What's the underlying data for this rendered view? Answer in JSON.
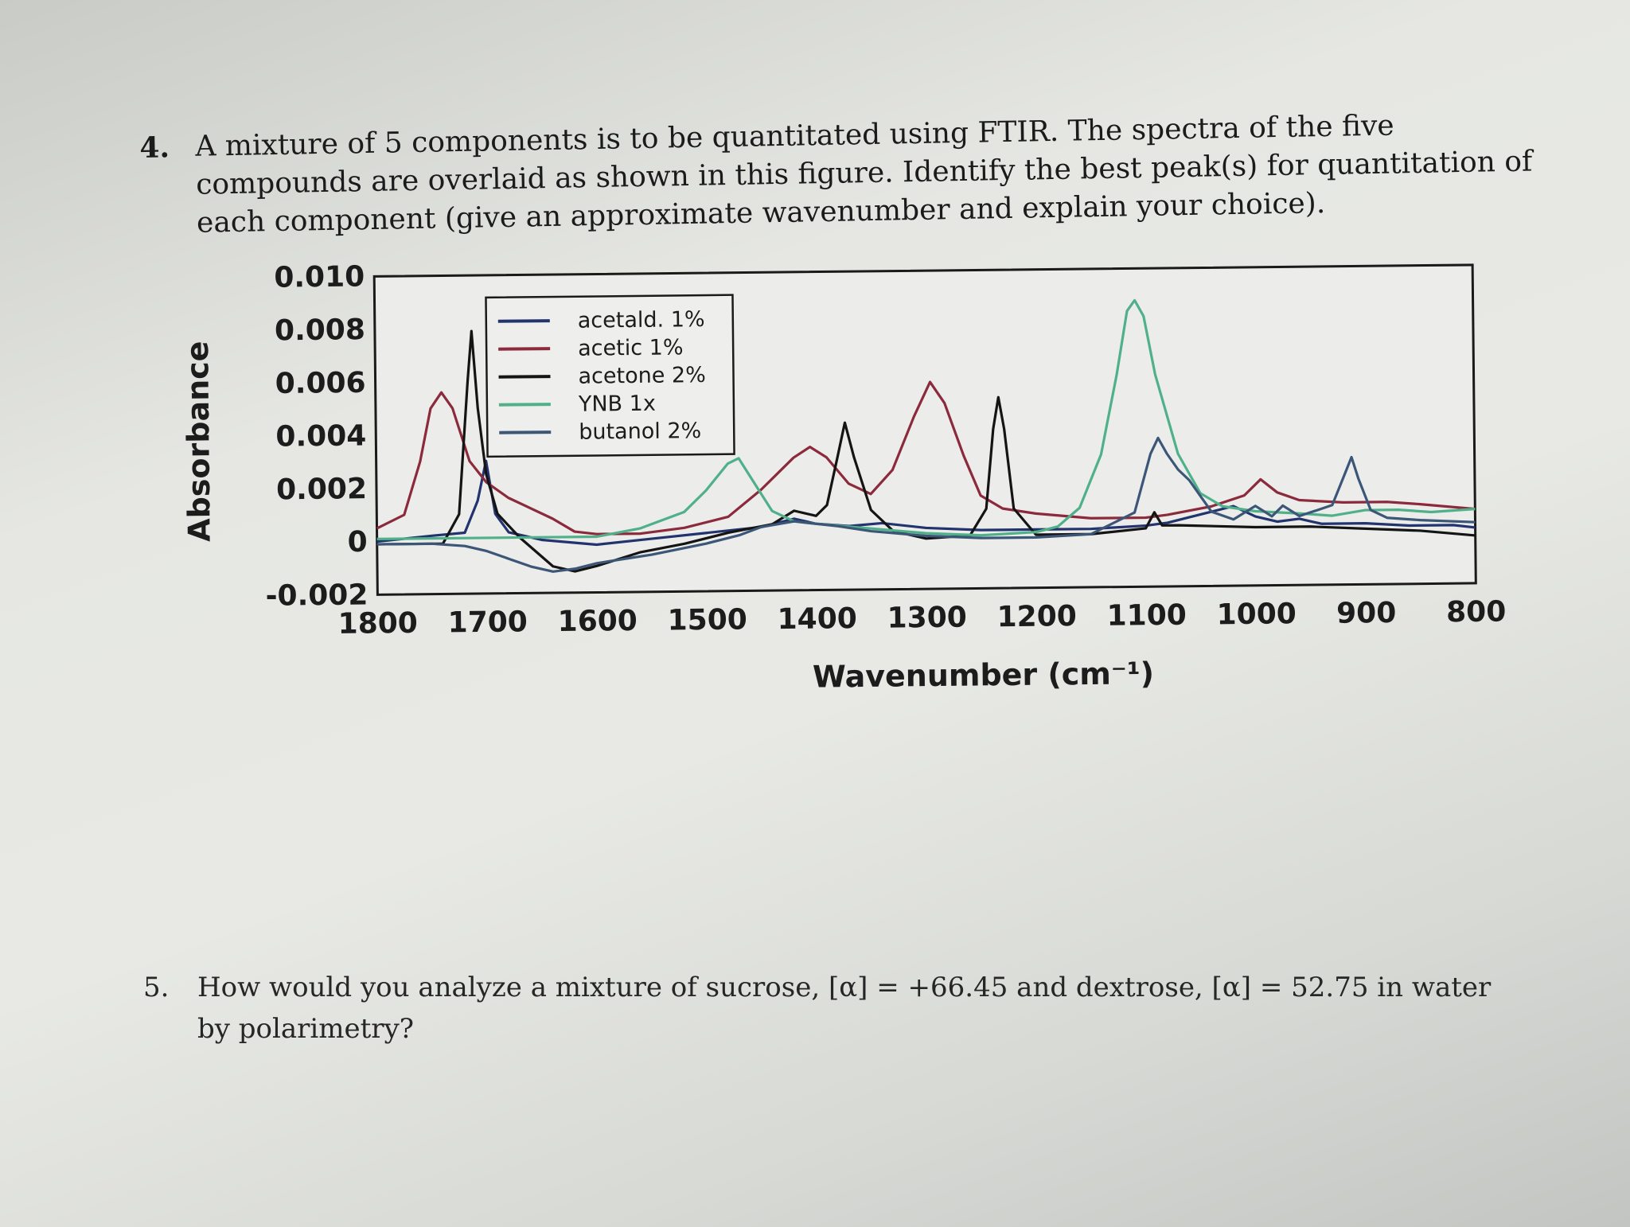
{
  "q4": {
    "number": "4.",
    "lines": [
      "A mixture of 5 components is to be quantitated using FTIR.  The spectra of the five",
      "compounds are overlaid as shown in this figure. Identify the best peak(s) for quantitation of",
      "each component (give an approximate wavenumber and explain your choice)."
    ]
  },
  "q5": {
    "number": "5.",
    "lines": [
      "How would you analyze a mixture of sucrose, [α] = +66.45 and dextrose, [α] = 52.75 in water",
      "by polarimetry?"
    ]
  },
  "chart_data": {
    "type": "line",
    "xlabel": "Wavenumber (cm⁻¹)",
    "ylabel": "Absorbance",
    "xlim": [
      1800,
      800
    ],
    "ylim": [
      -0.002,
      0.01
    ],
    "x_ticks": [
      "1800",
      "1700",
      "1600",
      "1500",
      "1400",
      "1300",
      "1200",
      "1100",
      "1000",
      "900",
      "800"
    ],
    "y_ticks": [
      "0.010",
      "0.008",
      "0.006",
      "0.004",
      "0.002",
      "0",
      "-0.002"
    ],
    "legend_position": "top-left",
    "series": [
      {
        "name": "acetald. 1%",
        "color": "#22336e",
        "points": [
          [
            1800,
            0.0
          ],
          [
            1750,
            0.0002
          ],
          [
            1720,
            0.0003
          ],
          [
            1708,
            0.0015
          ],
          [
            1700,
            0.003
          ],
          [
            1692,
            0.001
          ],
          [
            1680,
            0.0003
          ],
          [
            1650,
            0.0
          ],
          [
            1600,
            -0.0002
          ],
          [
            1550,
            0.0
          ],
          [
            1500,
            0.0002
          ],
          [
            1450,
            0.0004
          ],
          [
            1420,
            0.0007
          ],
          [
            1400,
            0.0005
          ],
          [
            1370,
            0.0004
          ],
          [
            1340,
            0.0005
          ],
          [
            1300,
            0.0003
          ],
          [
            1250,
            0.0002
          ],
          [
            1200,
            0.0002
          ],
          [
            1150,
            0.0002
          ],
          [
            1100,
            0.0003
          ],
          [
            1080,
            0.0004
          ],
          [
            1060,
            0.0006
          ],
          [
            1040,
            0.0008
          ],
          [
            1020,
            0.001
          ],
          [
            1000,
            0.0006
          ],
          [
            980,
            0.0004
          ],
          [
            960,
            0.0005
          ],
          [
            940,
            0.0003
          ],
          [
            900,
            0.0003
          ],
          [
            860,
            0.0002
          ],
          [
            820,
            0.0002
          ],
          [
            800,
            0.0001
          ]
        ]
      },
      {
        "name": "acetic 1%",
        "color": "#8b2a3c",
        "points": [
          [
            1800,
            0.0005
          ],
          [
            1775,
            0.001
          ],
          [
            1760,
            0.003
          ],
          [
            1750,
            0.005
          ],
          [
            1740,
            0.0056
          ],
          [
            1730,
            0.005
          ],
          [
            1715,
            0.003
          ],
          [
            1700,
            0.0022
          ],
          [
            1680,
            0.0016
          ],
          [
            1660,
            0.0012
          ],
          [
            1640,
            0.0008
          ],
          [
            1620,
            0.0003
          ],
          [
            1600,
            0.0002
          ],
          [
            1560,
            0.0002
          ],
          [
            1520,
            0.0004
          ],
          [
            1480,
            0.0008
          ],
          [
            1450,
            0.0018
          ],
          [
            1420,
            0.003
          ],
          [
            1405,
            0.0034
          ],
          [
            1390,
            0.003
          ],
          [
            1370,
            0.002
          ],
          [
            1350,
            0.0016
          ],
          [
            1330,
            0.0025
          ],
          [
            1310,
            0.0045
          ],
          [
            1295,
            0.0058
          ],
          [
            1282,
            0.005
          ],
          [
            1265,
            0.003
          ],
          [
            1250,
            0.0015
          ],
          [
            1230,
            0.001
          ],
          [
            1200,
            0.0008
          ],
          [
            1150,
            0.0006
          ],
          [
            1100,
            0.0006
          ],
          [
            1080,
            0.0007
          ],
          [
            1040,
            0.001
          ],
          [
            1010,
            0.0014
          ],
          [
            995,
            0.002
          ],
          [
            980,
            0.0015
          ],
          [
            960,
            0.0012
          ],
          [
            920,
            0.0011
          ],
          [
            880,
            0.0011
          ],
          [
            850,
            0.001
          ],
          [
            800,
            0.0008
          ]
        ]
      },
      {
        "name": "acetone 2%",
        "color": "#141414",
        "points": [
          [
            1800,
            -0.0001
          ],
          [
            1740,
            -0.0001
          ],
          [
            1725,
            0.001
          ],
          [
            1716,
            0.006
          ],
          [
            1712,
            0.0079
          ],
          [
            1707,
            0.005
          ],
          [
            1700,
            0.0025
          ],
          [
            1690,
            0.001
          ],
          [
            1670,
            0.0001
          ],
          [
            1640,
            -0.001
          ],
          [
            1620,
            -0.0012
          ],
          [
            1600,
            -0.001
          ],
          [
            1560,
            -0.0005
          ],
          [
            1520,
            -0.0002
          ],
          [
            1480,
            0.0002
          ],
          [
            1440,
            0.0005
          ],
          [
            1420,
            0.001
          ],
          [
            1400,
            0.0008
          ],
          [
            1390,
            0.0012
          ],
          [
            1380,
            0.003
          ],
          [
            1373,
            0.0043
          ],
          [
            1365,
            0.003
          ],
          [
            1350,
            0.001
          ],
          [
            1330,
            0.0002
          ],
          [
            1300,
            -0.0001
          ],
          [
            1260,
            0.0
          ],
          [
            1245,
            0.001
          ],
          [
            1238,
            0.004
          ],
          [
            1233,
            0.0052
          ],
          [
            1228,
            0.004
          ],
          [
            1220,
            0.001
          ],
          [
            1200,
            0.0
          ],
          [
            1150,
            0.0
          ],
          [
            1100,
            0.0002
          ],
          [
            1092,
            0.0008
          ],
          [
            1085,
            0.0003
          ],
          [
            1070,
            0.0003
          ],
          [
            1000,
            0.0002
          ],
          [
            950,
            0.0002
          ],
          [
            900,
            0.0001
          ],
          [
            850,
            0.0
          ],
          [
            800,
            -0.0002
          ]
        ]
      },
      {
        "name": "YNB 1x",
        "color": "#4fb08a",
        "points": [
          [
            1800,
            0.0001
          ],
          [
            1700,
            0.0001
          ],
          [
            1650,
            0.0001
          ],
          [
            1600,
            0.0001
          ],
          [
            1560,
            0.0004
          ],
          [
            1520,
            0.001
          ],
          [
            1500,
            0.0018
          ],
          [
            1480,
            0.0028
          ],
          [
            1470,
            0.003
          ],
          [
            1455,
            0.002
          ],
          [
            1440,
            0.001
          ],
          [
            1420,
            0.0006
          ],
          [
            1400,
            0.0005
          ],
          [
            1350,
            0.0003
          ],
          [
            1300,
            0.0001
          ],
          [
            1250,
            0.0
          ],
          [
            1200,
            0.0001
          ],
          [
            1180,
            0.0003
          ],
          [
            1160,
            0.001
          ],
          [
            1140,
            0.003
          ],
          [
            1125,
            0.006
          ],
          [
            1115,
            0.0084
          ],
          [
            1108,
            0.0088
          ],
          [
            1100,
            0.0082
          ],
          [
            1090,
            0.006
          ],
          [
            1070,
            0.003
          ],
          [
            1050,
            0.0015
          ],
          [
            1030,
            0.001
          ],
          [
            1000,
            0.0008
          ],
          [
            960,
            0.0007
          ],
          [
            930,
            0.0006
          ],
          [
            900,
            0.0008
          ],
          [
            870,
            0.0008
          ],
          [
            840,
            0.0007
          ],
          [
            800,
            0.0008
          ]
        ]
      },
      {
        "name": "butanol 2%",
        "color": "#3c5678",
        "points": [
          [
            1800,
            -0.0001
          ],
          [
            1750,
            -0.0001
          ],
          [
            1720,
            -0.0002
          ],
          [
            1700,
            -0.0004
          ],
          [
            1680,
            -0.0007
          ],
          [
            1660,
            -0.001
          ],
          [
            1640,
            -0.0012
          ],
          [
            1620,
            -0.0011
          ],
          [
            1600,
            -0.0009
          ],
          [
            1550,
            -0.0006
          ],
          [
            1500,
            -0.0002
          ],
          [
            1470,
            0.0001
          ],
          [
            1450,
            0.0004
          ],
          [
            1420,
            0.0006
          ],
          [
            1400,
            0.0005
          ],
          [
            1380,
            0.0004
          ],
          [
            1350,
            0.0002
          ],
          [
            1300,
            0.0
          ],
          [
            1250,
            -0.0001
          ],
          [
            1200,
            -0.0001
          ],
          [
            1150,
            0.0
          ],
          [
            1110,
            0.0008
          ],
          [
            1095,
            0.003
          ],
          [
            1088,
            0.0036
          ],
          [
            1080,
            0.003
          ],
          [
            1070,
            0.0024
          ],
          [
            1060,
            0.002
          ],
          [
            1040,
            0.0008
          ],
          [
            1020,
            0.0005
          ],
          [
            1000,
            0.001
          ],
          [
            985,
            0.0006
          ],
          [
            975,
            0.001
          ],
          [
            960,
            0.0006
          ],
          [
            945,
            0.0008
          ],
          [
            930,
            0.001
          ],
          [
            918,
            0.0022
          ],
          [
            912,
            0.0028
          ],
          [
            906,
            0.002
          ],
          [
            895,
            0.0008
          ],
          [
            880,
            0.0005
          ],
          [
            850,
            0.0004
          ],
          [
            800,
            0.0003
          ]
        ]
      }
    ]
  }
}
